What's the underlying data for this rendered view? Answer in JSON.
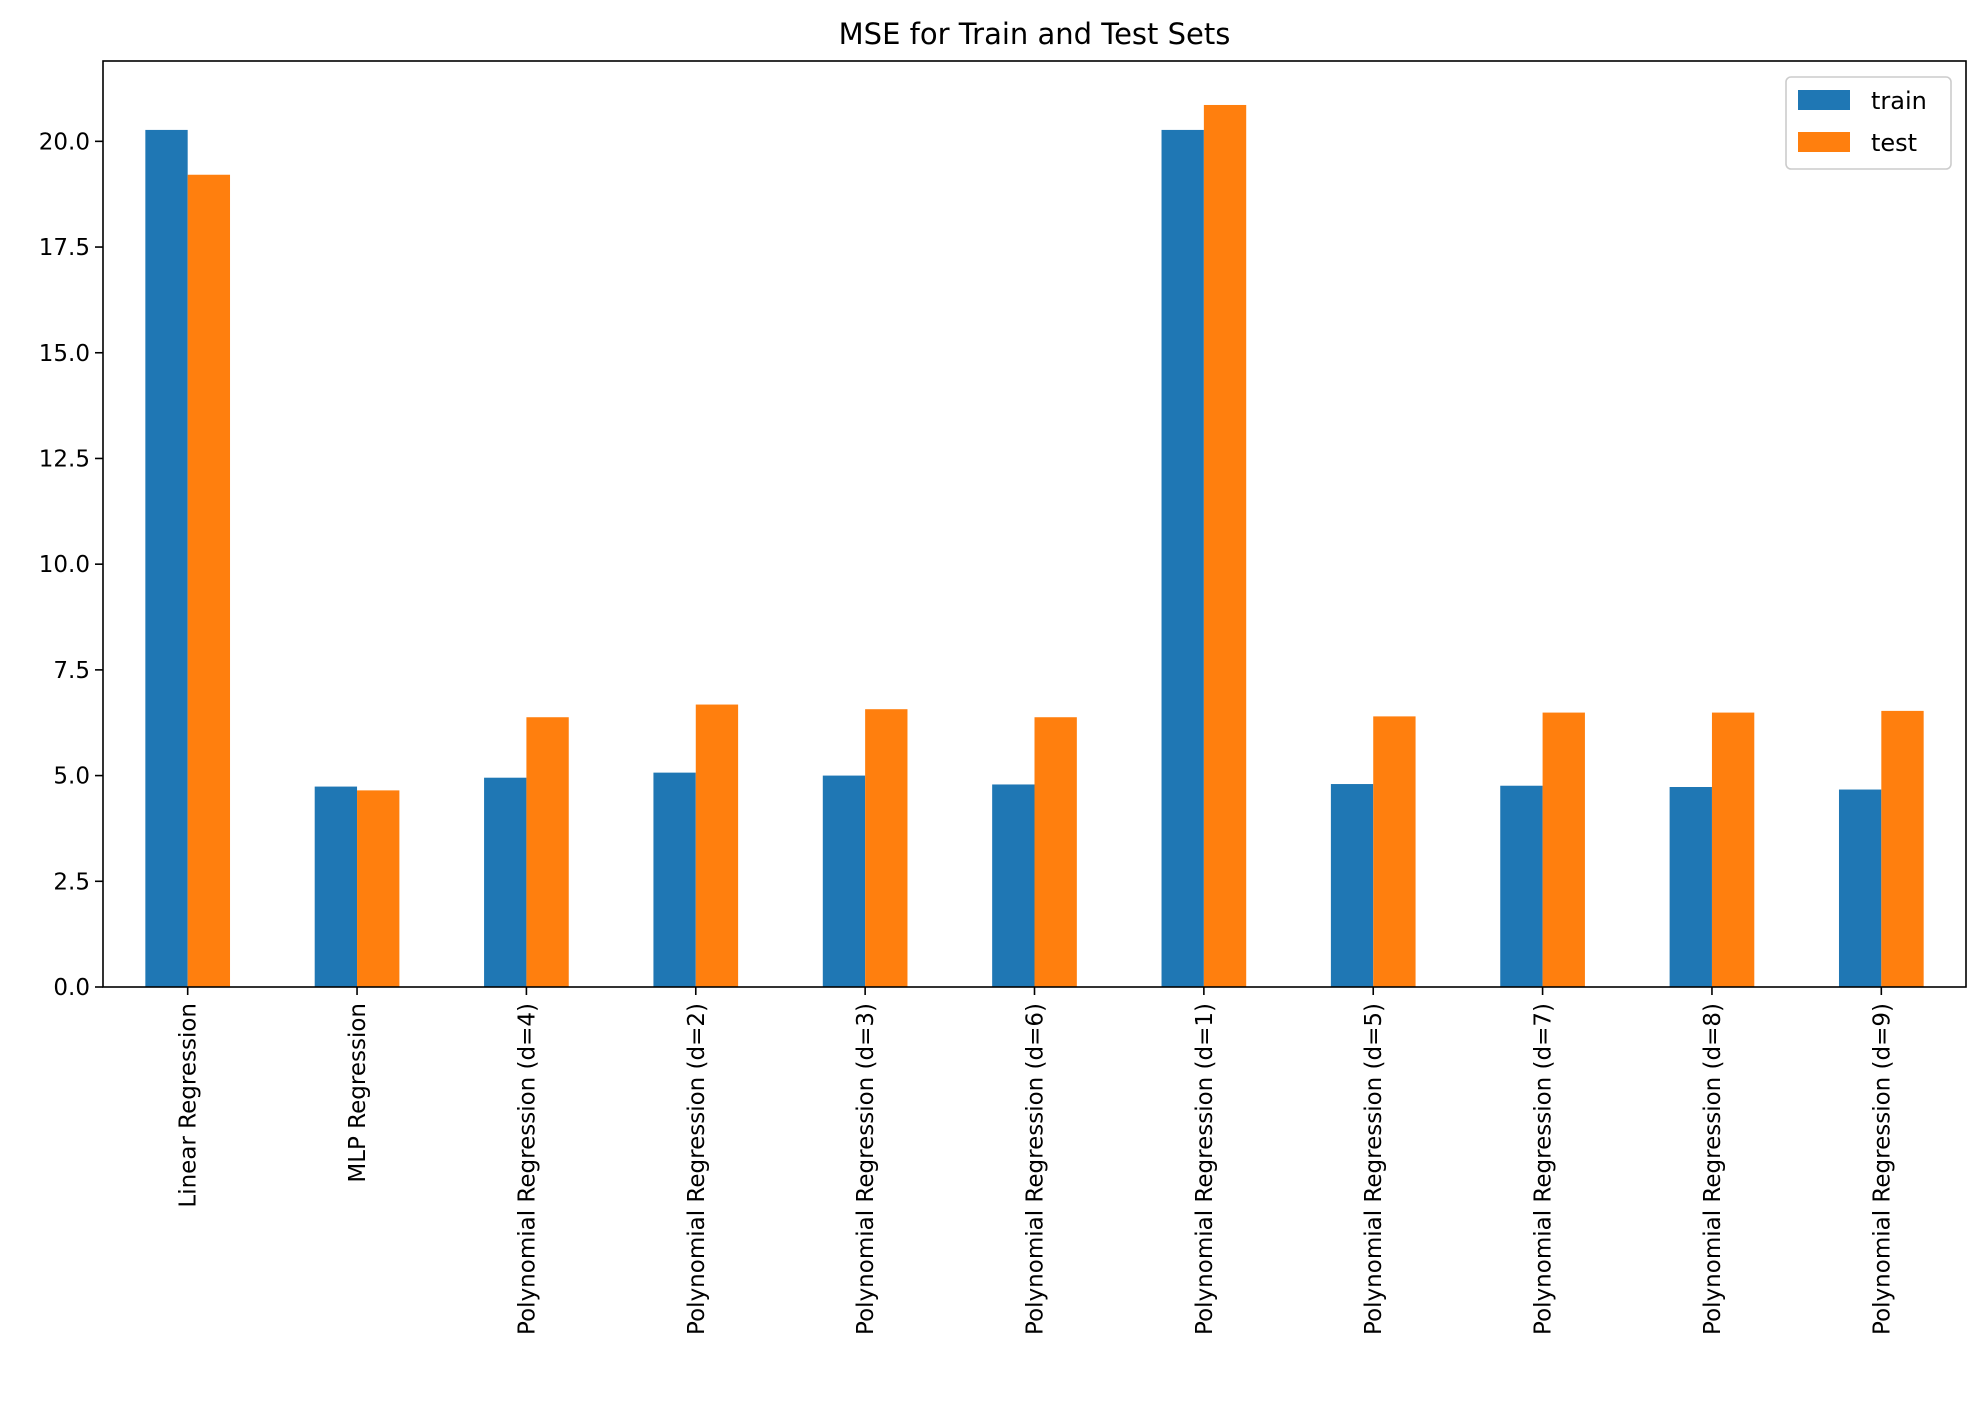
{
  "chart_data": {
    "type": "bar",
    "title": "MSE for Train and Test Sets",
    "xlabel": "",
    "ylabel": "",
    "ylim": [
      0,
      21.9
    ],
    "yticks": [
      0.0,
      2.5,
      5.0,
      7.5,
      10.0,
      12.5,
      15.0,
      17.5,
      20.0
    ],
    "ytick_labels": [
      "0.0",
      "2.5",
      "5.0",
      "7.5",
      "10.0",
      "12.5",
      "15.0",
      "17.5",
      "20.0"
    ],
    "categories": [
      "Linear Regression",
      "MLP Regression",
      "Polynomial Regression (d=4)",
      "Polynomial Regression (d=2)",
      "Polynomial Regression (d=3)",
      "Polynomial Regression (d=6)",
      "Polynomial Regression (d=1)",
      "Polynomial Regression (d=5)",
      "Polynomial Regression (d=7)",
      "Polynomial Regression (d=8)",
      "Polynomial Regression (d=9)"
    ],
    "series": [
      {
        "name": "train",
        "color": "#1f77b4",
        "values": [
          20.27,
          4.74,
          4.95,
          5.07,
          5.0,
          4.79,
          20.27,
          4.8,
          4.76,
          4.73,
          4.67
        ]
      },
      {
        "name": "test",
        "color": "#ff7f0e",
        "values": [
          19.21,
          4.65,
          6.38,
          6.68,
          6.57,
          6.38,
          20.86,
          6.4,
          6.49,
          6.49,
          6.53
        ]
      }
    ],
    "legend_position": "top-right",
    "grid": false
  }
}
